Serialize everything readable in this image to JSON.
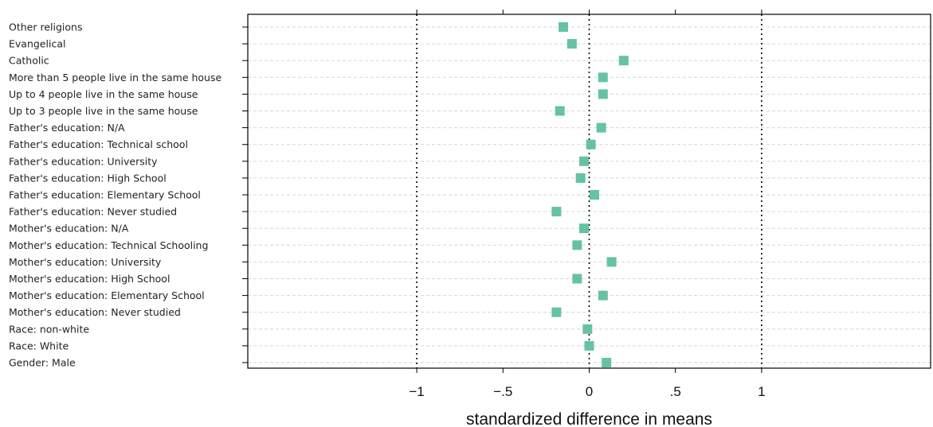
{
  "chart_data": {
    "type": "scatter",
    "title": "",
    "xlabel": "standardized difference in means",
    "ylabel": "",
    "xlim": [
      -1.98,
      1.98
    ],
    "x_ticks": [
      -1,
      -0.5,
      0,
      0.5,
      1
    ],
    "x_tick_labels": [
      "−1",
      "−.5",
      "0",
      ".5",
      "1"
    ],
    "reference_lines": [
      -1,
      0,
      1
    ],
    "grid": "horizontal dashed",
    "marker_color": "#66c2a5",
    "categories": [
      "Other religions",
      "Evangelical",
      "Catholic",
      "More than 5 people live in the same house",
      "Up to 4 people live in the same house",
      "Up to 3 people live in the same house",
      "Father's education: N/A",
      "Father's education: Technical school",
      "Father's education: University",
      "Father's education: High School",
      "Father's education: Elementary School",
      "Father's education: Never studied",
      "Mother's education: N/A",
      "Mother's education: Technical Schooling",
      "Mother's education: University",
      "Mother's education: High School",
      "Mother's education: Elementary School",
      "Mother's education: Never studied",
      "Race: non-white",
      "Race: White",
      "Gender: Male"
    ],
    "values": [
      -0.15,
      -0.1,
      0.2,
      0.08,
      0.08,
      -0.17,
      0.07,
      0.01,
      -0.03,
      -0.05,
      0.03,
      -0.19,
      -0.03,
      -0.07,
      0.13,
      -0.07,
      0.08,
      -0.19,
      -0.01,
      0.0,
      0.1
    ]
  }
}
